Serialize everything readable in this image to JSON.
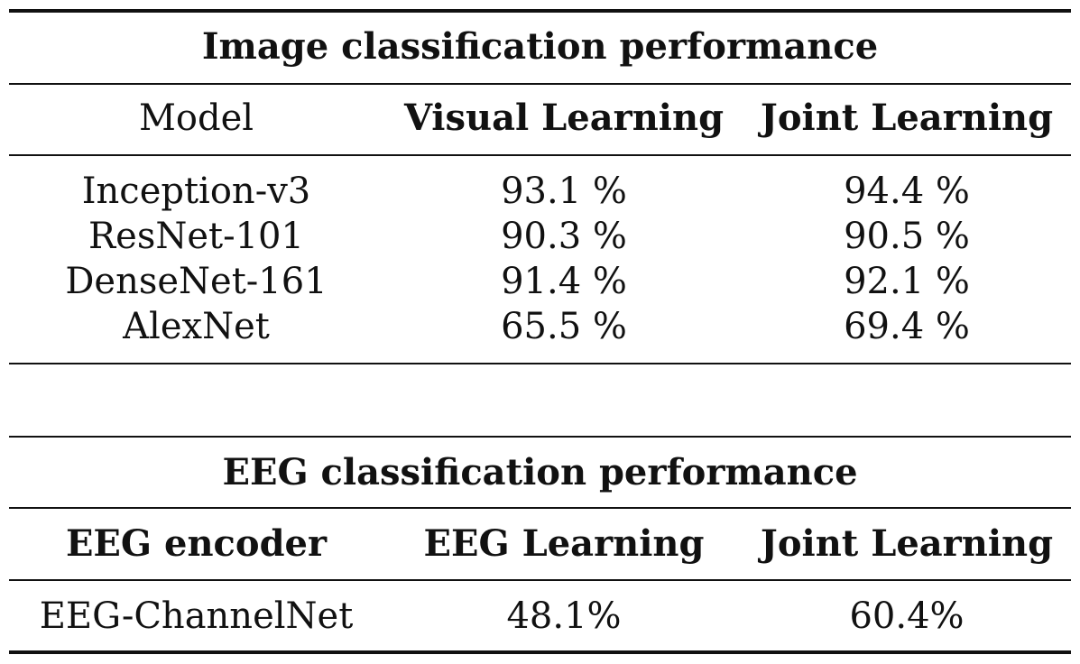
{
  "image_table": {
    "title": "Image classification performance",
    "headers": [
      "Model",
      "Visual Learning",
      "Joint Learning"
    ],
    "rows": [
      [
        "Inception-v3",
        "93.1 %",
        "94.4 %"
      ],
      [
        "ResNet-101",
        "90.3 %",
        "90.5 %"
      ],
      [
        "DenseNet-161",
        "91.4 %",
        "92.1 %"
      ],
      [
        "AlexNet",
        "65.5 %",
        "69.4 %"
      ]
    ]
  },
  "eeg_table": {
    "title": "EEG classification performance",
    "headers": [
      "EEG encoder",
      "EEG Learning",
      "Joint Learning"
    ],
    "rows": [
      [
        "EEG-ChannelNet",
        "48.1%",
        "60.4%"
      ]
    ]
  }
}
